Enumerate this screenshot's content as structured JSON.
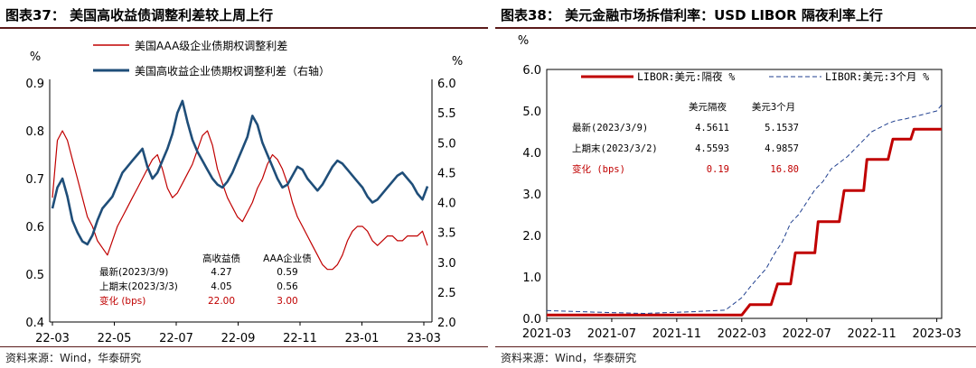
{
  "left_panel": {
    "title": "图表37：  美国高收益债调整利差较上周上行",
    "source": "资料来源：Wind，华泰研究",
    "chart_data": {
      "type": "line",
      "x_tick_labels": [
        "22-03",
        "22-05",
        "22-07",
        "22-09",
        "22-11",
        "23-01",
        "23-03"
      ],
      "y_left_unit": "%",
      "y_right_unit": "%",
      "ylim_left": [
        0.4,
        0.9
      ],
      "ylim_right": [
        2.0,
        6.0
      ],
      "y_left_ticks": [
        "0.4",
        "0.5",
        "0.6",
        "0.7",
        "0.8",
        "0.9"
      ],
      "y_right_ticks": [
        "2.0",
        "2.5",
        "3.0",
        "3.5",
        "4.0",
        "4.5",
        "5.0",
        "5.5",
        "6.0"
      ],
      "series": [
        {
          "name": "美国AAA级企业债期权调整利差",
          "axis": "left",
          "color": "#c00000",
          "values": [
            0.66,
            0.78,
            0.8,
            0.78,
            0.74,
            0.7,
            0.66,
            0.62,
            0.6,
            0.57,
            0.555,
            0.54,
            0.57,
            0.6,
            0.62,
            0.64,
            0.66,
            0.68,
            0.7,
            0.72,
            0.74,
            0.75,
            0.72,
            0.68,
            0.66,
            0.67,
            0.69,
            0.71,
            0.73,
            0.76,
            0.79,
            0.8,
            0.77,
            0.72,
            0.69,
            0.66,
            0.64,
            0.62,
            0.61,
            0.63,
            0.65,
            0.68,
            0.7,
            0.73,
            0.75,
            0.74,
            0.72,
            0.69,
            0.65,
            0.62,
            0.6,
            0.58,
            0.56,
            0.54,
            0.52,
            0.51,
            0.51,
            0.52,
            0.54,
            0.57,
            0.59,
            0.6,
            0.6,
            0.59,
            0.57,
            0.56,
            0.57,
            0.58,
            0.58,
            0.57,
            0.57,
            0.58,
            0.58,
            0.58,
            0.59,
            0.56
          ]
        },
        {
          "name": "美国高收益企业债期权调整利差（右轴）",
          "axis": "right",
          "color": "#1f4e79",
          "values": [
            3.9,
            4.25,
            4.4,
            4.1,
            3.7,
            3.5,
            3.35,
            3.3,
            3.45,
            3.7,
            3.9,
            4.0,
            4.1,
            4.3,
            4.5,
            4.6,
            4.7,
            4.8,
            4.9,
            4.6,
            4.4,
            4.5,
            4.7,
            4.9,
            5.15,
            5.5,
            5.7,
            5.35,
            5.05,
            4.85,
            4.7,
            4.55,
            4.4,
            4.3,
            4.25,
            4.35,
            4.5,
            4.7,
            4.9,
            5.1,
            5.45,
            5.3,
            5.0,
            4.8,
            4.6,
            4.4,
            4.25,
            4.3,
            4.45,
            4.6,
            4.55,
            4.4,
            4.3,
            4.2,
            4.3,
            4.45,
            4.6,
            4.7,
            4.65,
            4.55,
            4.45,
            4.35,
            4.25,
            4.1,
            4.0,
            4.05,
            4.15,
            4.25,
            4.35,
            4.45,
            4.5,
            4.4,
            4.3,
            4.15,
            4.05,
            4.27
          ]
        }
      ],
      "table": {
        "headers": [
          "",
          "高收益债",
          "AAA企业债"
        ],
        "rows": [
          [
            "最新(2023/3/9)",
            "4.27",
            "0.59"
          ],
          [
            "上期末(2023/3/3)",
            "4.05",
            "0.56"
          ],
          [
            "变化 (bps)",
            "22.00",
            "3.00"
          ]
        ]
      }
    }
  },
  "right_panel": {
    "title": "图表38：  美元金融市场拆借利率：USD LIBOR 隔夜利率上行",
    "source": "资料来源：Wind，华泰研究",
    "chart_data": {
      "type": "line",
      "x_tick_labels": [
        "2021-03",
        "2021-07",
        "2021-11",
        "2022-03",
        "2022-07",
        "2022-11",
        "2023-03"
      ],
      "y_unit": "%",
      "ylim": [
        0.0,
        6.0
      ],
      "y_ticks": [
        "0.0",
        "1.0",
        "2.0",
        "3.0",
        "4.0",
        "5.0",
        "6.0"
      ],
      "series": [
        {
          "name": "LIBOR:美元:隔夜 %",
          "color": "#c00000",
          "style": "solid",
          "x": [
            0,
            12,
            12.5,
            13.8,
            14.2,
            15.0,
            15.3,
            16.5,
            16.7,
            18.0,
            18.3,
            19.5,
            19.7,
            21.0,
            21.3,
            22.4,
            22.6,
            24.0,
            24.3
          ],
          "values": [
            0.08,
            0.08,
            0.33,
            0.33,
            0.83,
            0.83,
            1.58,
            1.58,
            2.33,
            2.33,
            3.08,
            3.08,
            3.83,
            3.83,
            4.32,
            4.32,
            4.56,
            4.56,
            4.56
          ]
        },
        {
          "name": "LIBOR:美元:3个月 %",
          "color": "#1f3f8f",
          "style": "dashed",
          "x": [
            0,
            3,
            6,
            9,
            11,
            12,
            12.5,
            13,
            13.5,
            14,
            14.5,
            15,
            15.5,
            16,
            16.5,
            17,
            17.5,
            18,
            18.5,
            19,
            19.5,
            20,
            20.5,
            21,
            21.5,
            22,
            22.5,
            23,
            23.5,
            24,
            24.3
          ],
          "values": [
            0.19,
            0.15,
            0.12,
            0.16,
            0.2,
            0.5,
            0.75,
            0.98,
            1.2,
            1.55,
            1.85,
            2.3,
            2.5,
            2.8,
            3.1,
            3.3,
            3.6,
            3.75,
            3.9,
            4.1,
            4.3,
            4.5,
            4.6,
            4.7,
            4.77,
            4.8,
            4.85,
            4.9,
            4.95,
            5.0,
            5.15
          ]
        }
      ],
      "table": {
        "headers": [
          "",
          "美元隔夜",
          "美元3个月"
        ],
        "rows": [
          [
            "最新(2023/3/9)",
            "4.5611",
            "5.1537"
          ],
          [
            "上期末(2023/3/2)",
            "4.5593",
            "4.9857"
          ],
          [
            "变化 (bps)",
            "0.19",
            "16.80"
          ]
        ]
      }
    }
  }
}
